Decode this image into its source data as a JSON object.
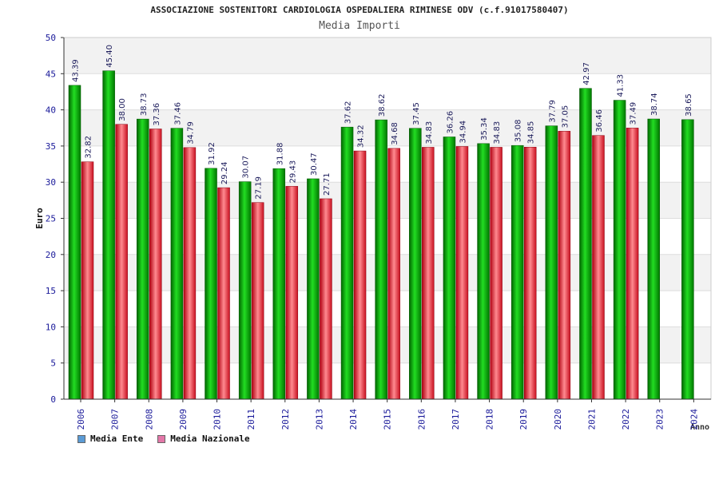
{
  "chart_data": {
    "type": "bar",
    "title": "ASSOCIAZIONE SOSTENITORI CARDIOLOGIA OSPEDALIERA RIMINESE ODV (c.f.91017580407)",
    "subtitle": "Media Importi",
    "xlabel": "Anno",
    "ylabel": "Euro",
    "ylim": [
      0,
      50
    ],
    "yticks": [
      0,
      5,
      10,
      15,
      20,
      25,
      30,
      35,
      40,
      45,
      50
    ],
    "categories": [
      "2006",
      "2007",
      "2008",
      "2009",
      "2010",
      "2011",
      "2012",
      "2013",
      "2014",
      "2015",
      "2016",
      "2017",
      "2018",
      "2019",
      "2020",
      "2021",
      "2022",
      "2023",
      "2024"
    ],
    "series": [
      {
        "name": "Media Ente",
        "color": "#00aa00",
        "values": [
          43.39,
          45.4,
          38.73,
          37.46,
          31.92,
          30.07,
          31.88,
          30.47,
          37.62,
          38.62,
          37.45,
          36.26,
          35.34,
          35.08,
          37.79,
          42.97,
          41.33,
          38.74,
          38.65
        ],
        "labels": [
          "43.39",
          "45.40",
          "38.73",
          "37.46",
          "31.92",
          "30.07",
          "31.88",
          "30.47",
          "37.62",
          "38.62",
          "37.45",
          "36.26",
          "35.34",
          "35.08",
          "37.79",
          "42.97",
          "41.33",
          "38.74",
          "38.65"
        ]
      },
      {
        "name": "Media Nazionale",
        "color": "#e02030",
        "values": [
          32.82,
          38.0,
          37.36,
          34.79,
          29.24,
          27.19,
          29.43,
          27.71,
          34.32,
          34.68,
          34.83,
          34.94,
          34.83,
          34.85,
          37.05,
          36.46,
          37.49,
          null,
          null
        ],
        "labels": [
          "32.82",
          "38.00",
          "37.36",
          "34.79",
          "29.24",
          "27.19",
          "29.43",
          "27.71",
          "34.32",
          "34.68",
          "34.83",
          "34.94",
          "34.83",
          "34.85",
          "37.05",
          "36.46",
          "37.49",
          null,
          null
        ]
      }
    ],
    "legend": [
      {
        "label": "Media Ente",
        "color": "#5b9bd5"
      },
      {
        "label": "Media Nazionale",
        "color": "#e377a8"
      }
    ],
    "legend_position": "bottom-left",
    "grid": true
  }
}
